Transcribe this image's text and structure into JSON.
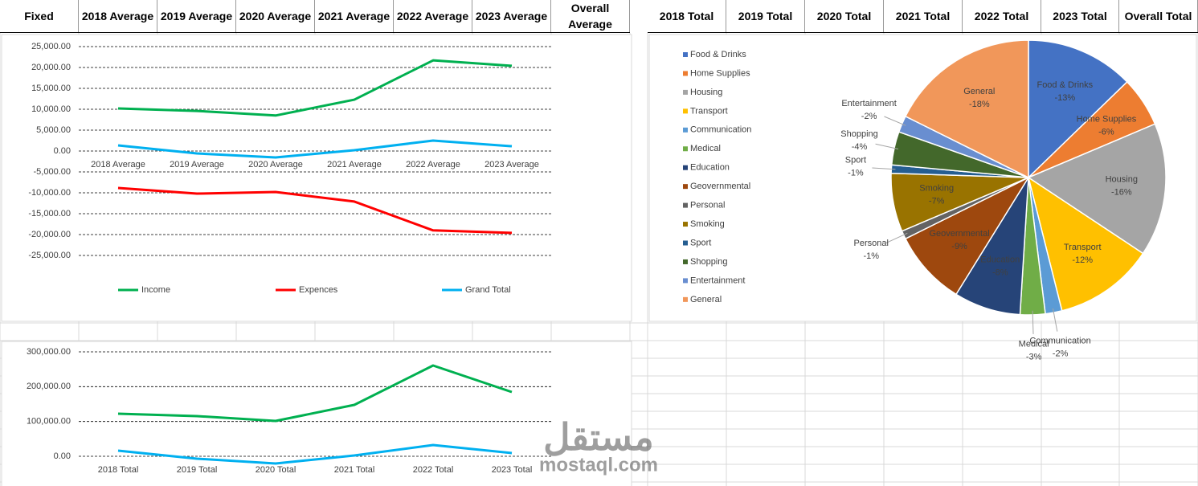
{
  "header": [
    "Fixed",
    "2018 Average",
    "2019 Average",
    "2020 Average",
    "2021 Average",
    "2022 Average",
    "2023 Average",
    "Overall Average",
    "2018 Total",
    "2019 Total",
    "2020 Total",
    "2021 Total",
    "2022 Total",
    "2023 Total",
    "Overall Total"
  ],
  "watermark": {
    "logo": "مستقل",
    "url": "mostaql.com"
  },
  "chart_data": [
    {
      "type": "line",
      "categories": [
        "2018 Average",
        "2019 Average",
        "2020 Average",
        "2021 Average",
        "2022 Average",
        "2023 Average"
      ],
      "series": [
        {
          "name": "Income",
          "color": "#00b050",
          "values": [
            10200,
            9600,
            8500,
            12300,
            21700,
            20400
          ]
        },
        {
          "name": "Expences",
          "color": "#ff0000",
          "values": [
            -8850,
            -10200,
            -9800,
            -12100,
            -19000,
            -19600
          ]
        },
        {
          "name": "Grand Total",
          "color": "#00b0f0",
          "values": [
            1350,
            -580,
            -1540,
            190,
            2500,
            1150
          ]
        }
      ],
      "ylim": [
        -25000,
        25000
      ],
      "yticks": [
        {
          "value": -25000,
          "label": "-25,000.00"
        },
        {
          "value": -20000,
          "label": "-20,000.00"
        },
        {
          "value": -15000,
          "label": "-15,000.00"
        },
        {
          "value": -10000,
          "label": "-10,000.00"
        },
        {
          "value": -5000,
          "label": "-5,000.00"
        },
        {
          "value": 0,
          "label": "0.00"
        },
        {
          "value": 5000,
          "label": "5,000.00"
        },
        {
          "value": 10000,
          "label": "10,000.00"
        },
        {
          "value": 15000,
          "label": "15,000.00"
        },
        {
          "value": 20000,
          "label": "20,000.00"
        },
        {
          "value": 25000,
          "label": "25,000.00"
        }
      ],
      "grid": true,
      "legend": "bottom"
    },
    {
      "type": "line",
      "categories": [
        "2018 Total",
        "2019 Total",
        "2020 Total",
        "2021 Total",
        "2022 Total",
        "2023 Total"
      ],
      "series": [
        {
          "color": "#00b050",
          "values": [
            122300,
            115400,
            101500,
            147700,
            260800,
            184600
          ]
        },
        {
          "color": "#00b0f0",
          "values": [
            16200,
            -6900,
            -20800,
            2300,
            32300,
            9200
          ]
        }
      ],
      "ylim": [
        -50000,
        300000
      ],
      "yticks": [
        {
          "value": 0,
          "label": "0.00"
        },
        {
          "value": 100000,
          "label": "100,000.00"
        },
        {
          "value": 200000,
          "label": "200,000.00"
        },
        {
          "value": 300000,
          "label": "300,000.00"
        }
      ],
      "grid": true
    },
    {
      "type": "pie",
      "categories": [
        "Food & Drinks",
        "Home Supplies",
        "Housing",
        "Transport",
        "Communication",
        "Medical",
        "Education",
        "Geovernmental",
        "Personal",
        "Smoking",
        "Sport",
        "Shopping",
        "Entertainment",
        "General"
      ],
      "values": [
        -13,
        -6,
        -16,
        -12,
        -2,
        -3,
        -8,
        -9,
        -1,
        -7,
        -1,
        -4,
        -2,
        -18
      ],
      "value_labels": [
        "-13%",
        "-6%",
        "-16%",
        "-12%",
        "-2%",
        "-3%",
        "-8%",
        "-9%",
        "-1%",
        "-7%",
        "-1%",
        "-4%",
        "-2%",
        "-18%"
      ],
      "colors": [
        "#4472c4",
        "#ed7d31",
        "#a5a5a5",
        "#ffc000",
        "#5b9bd5",
        "#70ad47",
        "#264478",
        "#9e480e",
        "#636363",
        "#997300",
        "#255e91",
        "#43682b",
        "#698ed0",
        "#f1975a"
      ],
      "legend": "left"
    }
  ]
}
